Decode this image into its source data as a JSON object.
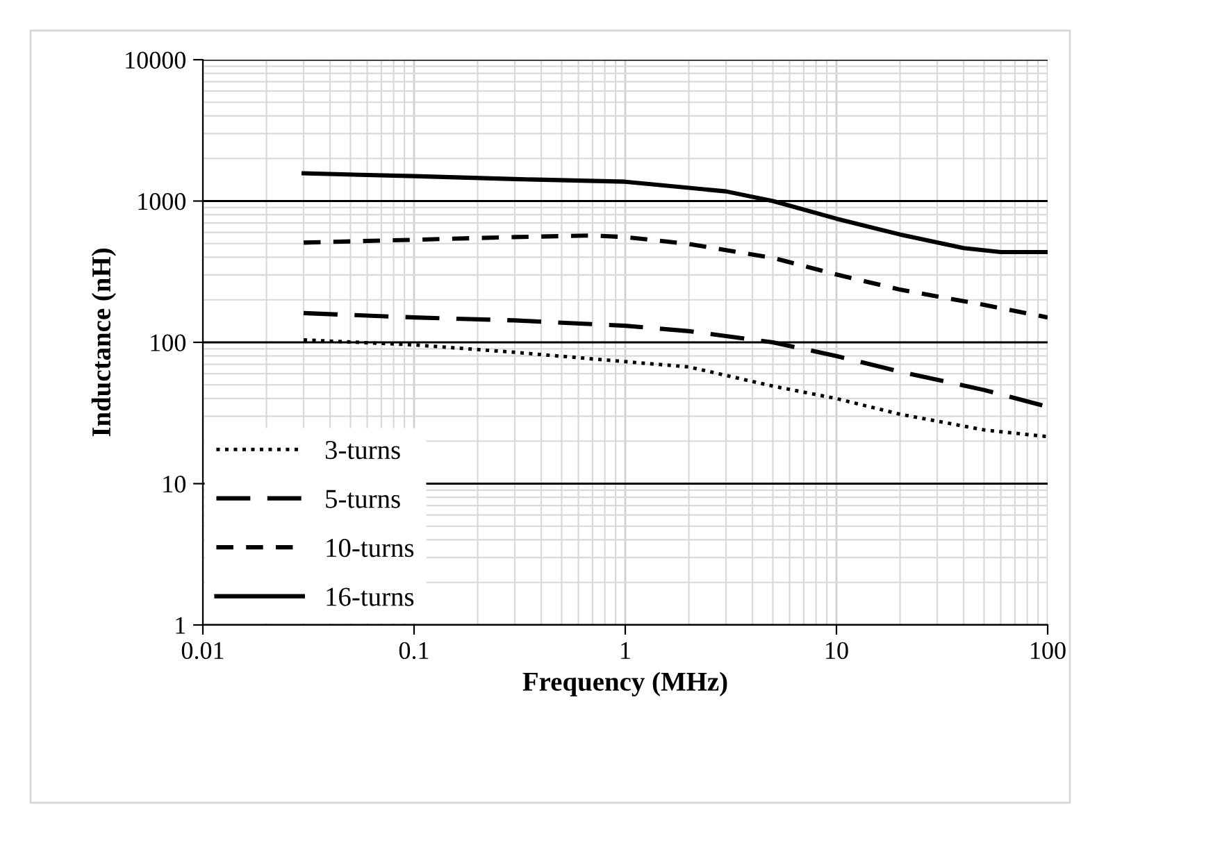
{
  "chart_data": {
    "type": "line",
    "xlabel": "Frequency (MHz)",
    "ylabel": "Inductance (nH)",
    "log": "xy",
    "xlim": [
      0.01,
      100
    ],
    "ylim": [
      1,
      10000
    ],
    "xticks": [
      0.01,
      0.1,
      1,
      10,
      100
    ],
    "yticks": [
      1,
      10,
      100,
      1000,
      10000
    ],
    "grid": true,
    "legend": "bottom left",
    "marker": "none",
    "series": [
      {
        "name": "3-turns",
        "color": "#000000",
        "line_style": "dotted",
        "x": [
          0.03,
          0.1,
          0.3,
          1,
          2,
          5,
          10,
          20,
          50,
          100
        ],
        "values": [
          104,
          96,
          85,
          73,
          67,
          49,
          40,
          31,
          24,
          21.5
        ]
      },
      {
        "name": "5-turns",
        "color": "#000000",
        "line_style": "longdash",
        "x": [
          0.03,
          0.1,
          0.3,
          1,
          2,
          5,
          10,
          20,
          50,
          100
        ],
        "values": [
          161,
          150,
          143,
          131,
          120,
          100,
          80,
          62,
          46,
          35
        ]
      },
      {
        "name": "10-turns",
        "color": "#000000",
        "line_style": "dashed",
        "x": [
          0.03,
          0.1,
          0.3,
          0.7,
          1,
          2,
          5,
          10,
          20,
          50,
          100
        ],
        "values": [
          508,
          532,
          556,
          570,
          556,
          497,
          396,
          302,
          236,
          184,
          150
        ]
      },
      {
        "name": "16-turns",
        "color": "#000000",
        "line_style": "solid",
        "x": [
          0.03,
          0.1,
          0.3,
          1,
          3,
          5,
          10,
          20,
          40,
          60,
          100
        ],
        "values": [
          1570,
          1500,
          1430,
          1370,
          1170,
          1000,
          750,
          580,
          465,
          435,
          435
        ]
      }
    ]
  }
}
